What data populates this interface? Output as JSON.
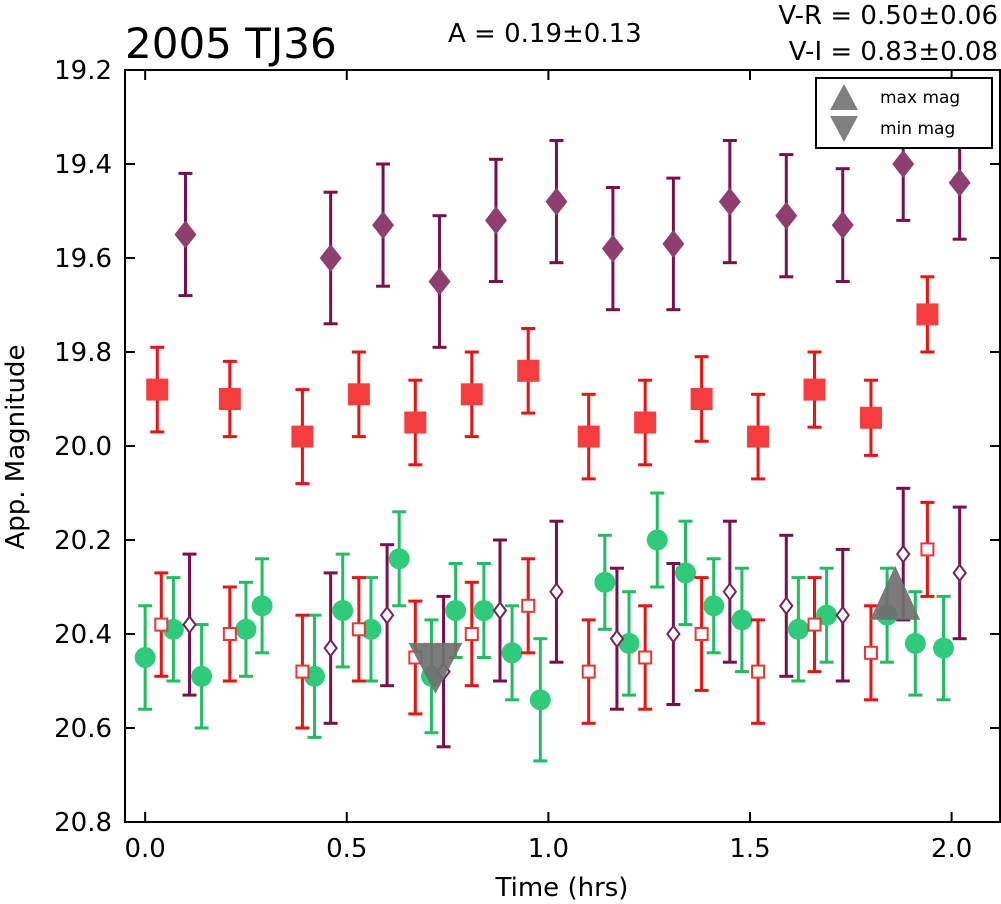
{
  "chart_data": {
    "type": "scatter",
    "title": "2005 TJ36",
    "annotations": {
      "amplitude": "A  = 0.19±0.13",
      "v_r": "V-R = 0.50±0.06",
      "v_i": "V-I  = 0.83±0.08"
    },
    "xlabel": "Time (hrs)",
    "ylabel": "App. Magnitude",
    "xlim": [
      -0.05,
      2.12
    ],
    "ylim": [
      20.8,
      19.2
    ],
    "y_inverted": true,
    "grid": false,
    "xticks": [
      "0.0",
      "0.5",
      "1.0",
      "1.5",
      "2.0"
    ],
    "xtick_values": [
      0.0,
      0.5,
      1.0,
      1.5,
      2.0
    ],
    "yticks": [
      "19.2",
      "19.4",
      "19.6",
      "19.8",
      "20.0",
      "20.2",
      "20.4",
      "20.6",
      "20.8"
    ],
    "ytick_values": [
      19.2,
      19.4,
      19.6,
      19.8,
      20.0,
      20.2,
      20.4,
      20.6,
      20.8
    ],
    "legend": {
      "placement": "top-right",
      "entries": [
        {
          "label": "max mag",
          "marker": "triangle-up",
          "color": "#808080"
        },
        {
          "label": "min mag",
          "marker": "triangle-down",
          "color": "#808080"
        }
      ]
    },
    "series": [
      {
        "marker": "diamond-filled",
        "color": "#8e3f6d",
        "errcolor": "#7a0f4c",
        "x": [
          0.1,
          0.46,
          0.59,
          0.73,
          0.87,
          1.02,
          1.16,
          1.31,
          1.45,
          1.59,
          1.73,
          1.88,
          2.02
        ],
        "y": [
          19.55,
          19.6,
          19.53,
          19.65,
          19.52,
          19.48,
          19.58,
          19.57,
          19.48,
          19.51,
          19.53,
          19.4,
          19.44
        ],
        "err": [
          0.13,
          0.14,
          0.13,
          0.14,
          0.13,
          0.13,
          0.13,
          0.14,
          0.13,
          0.13,
          0.12,
          0.12,
          0.12
        ]
      },
      {
        "marker": "square-filled",
        "color": "#f53d3d",
        "errcolor": "#ee1111",
        "x": [
          0.03,
          0.21,
          0.39,
          0.53,
          0.67,
          0.81,
          0.95,
          1.1,
          1.24,
          1.38,
          1.52,
          1.66,
          1.8,
          1.94
        ],
        "y": [
          19.88,
          19.9,
          19.98,
          19.89,
          19.95,
          19.89,
          19.84,
          19.98,
          19.95,
          19.9,
          19.98,
          19.88,
          19.94,
          19.72
        ],
        "err": [
          0.09,
          0.08,
          0.1,
          0.09,
          0.09,
          0.09,
          0.09,
          0.09,
          0.09,
          0.09,
          0.09,
          0.08,
          0.08,
          0.08
        ]
      },
      {
        "marker": "circle-filled",
        "color": "#2ecc7a",
        "errcolor": "#1dbf62",
        "x": [
          0.0,
          0.07,
          0.14,
          0.25,
          0.29,
          0.42,
          0.49,
          0.56,
          0.63,
          0.71,
          0.77,
          0.84,
          0.91,
          0.98,
          1.14,
          1.2,
          1.27,
          1.34,
          1.41,
          1.48,
          1.62,
          1.69,
          1.84,
          1.91,
          1.98
        ],
        "y": [
          20.45,
          20.39,
          20.49,
          20.39,
          20.34,
          20.49,
          20.35,
          20.39,
          20.24,
          20.49,
          20.35,
          20.35,
          20.44,
          20.54,
          20.29,
          20.42,
          20.2,
          20.27,
          20.34,
          20.37,
          20.39,
          20.36,
          20.36,
          20.42,
          20.43
        ],
        "err": [
          0.11,
          0.11,
          0.11,
          0.1,
          0.1,
          0.13,
          0.12,
          0.11,
          0.1,
          0.12,
          0.1,
          0.1,
          0.1,
          0.13,
          0.1,
          0.11,
          0.1,
          0.11,
          0.1,
          0.11,
          0.11,
          0.1,
          0.1,
          0.11,
          0.11
        ]
      },
      {
        "marker": "square-open",
        "color": "#ee3333",
        "errcolor": "#ee1111",
        "x": [
          0.04,
          0.21,
          0.39,
          0.53,
          0.67,
          0.81,
          0.95,
          1.1,
          1.24,
          1.38,
          1.52,
          1.66,
          1.8,
          1.94
        ],
        "y": [
          20.38,
          20.4,
          20.48,
          20.39,
          20.45,
          20.4,
          20.34,
          20.48,
          20.45,
          20.4,
          20.48,
          20.38,
          20.44,
          20.22
        ],
        "err": [
          0.11,
          0.1,
          0.12,
          0.11,
          0.12,
          0.11,
          0.1,
          0.11,
          0.11,
          0.12,
          0.11,
          0.1,
          0.1,
          0.1
        ]
      },
      {
        "marker": "diamond-open",
        "color": "#7a1f5c",
        "errcolor": "#7a0f4c",
        "x": [
          0.11,
          0.46,
          0.6,
          0.74,
          0.88,
          1.02,
          1.17,
          1.31,
          1.45,
          1.59,
          1.73,
          1.88,
          2.02
        ],
        "y": [
          20.38,
          20.43,
          20.36,
          20.48,
          20.35,
          20.31,
          20.41,
          20.4,
          20.31,
          20.34,
          20.36,
          20.23,
          20.27
        ],
        "err": [
          0.15,
          0.16,
          0.15,
          0.16,
          0.15,
          0.15,
          0.15,
          0.15,
          0.15,
          0.15,
          0.14,
          0.14,
          0.14
        ]
      }
    ],
    "extrema_markers": [
      {
        "marker": "triangle-down",
        "label": "min mag",
        "x": 0.72,
        "y": 20.47,
        "color": "#707070"
      },
      {
        "marker": "triangle-up",
        "label": "max mag",
        "x": 1.86,
        "y": 20.34,
        "color": "#707070"
      }
    ]
  }
}
